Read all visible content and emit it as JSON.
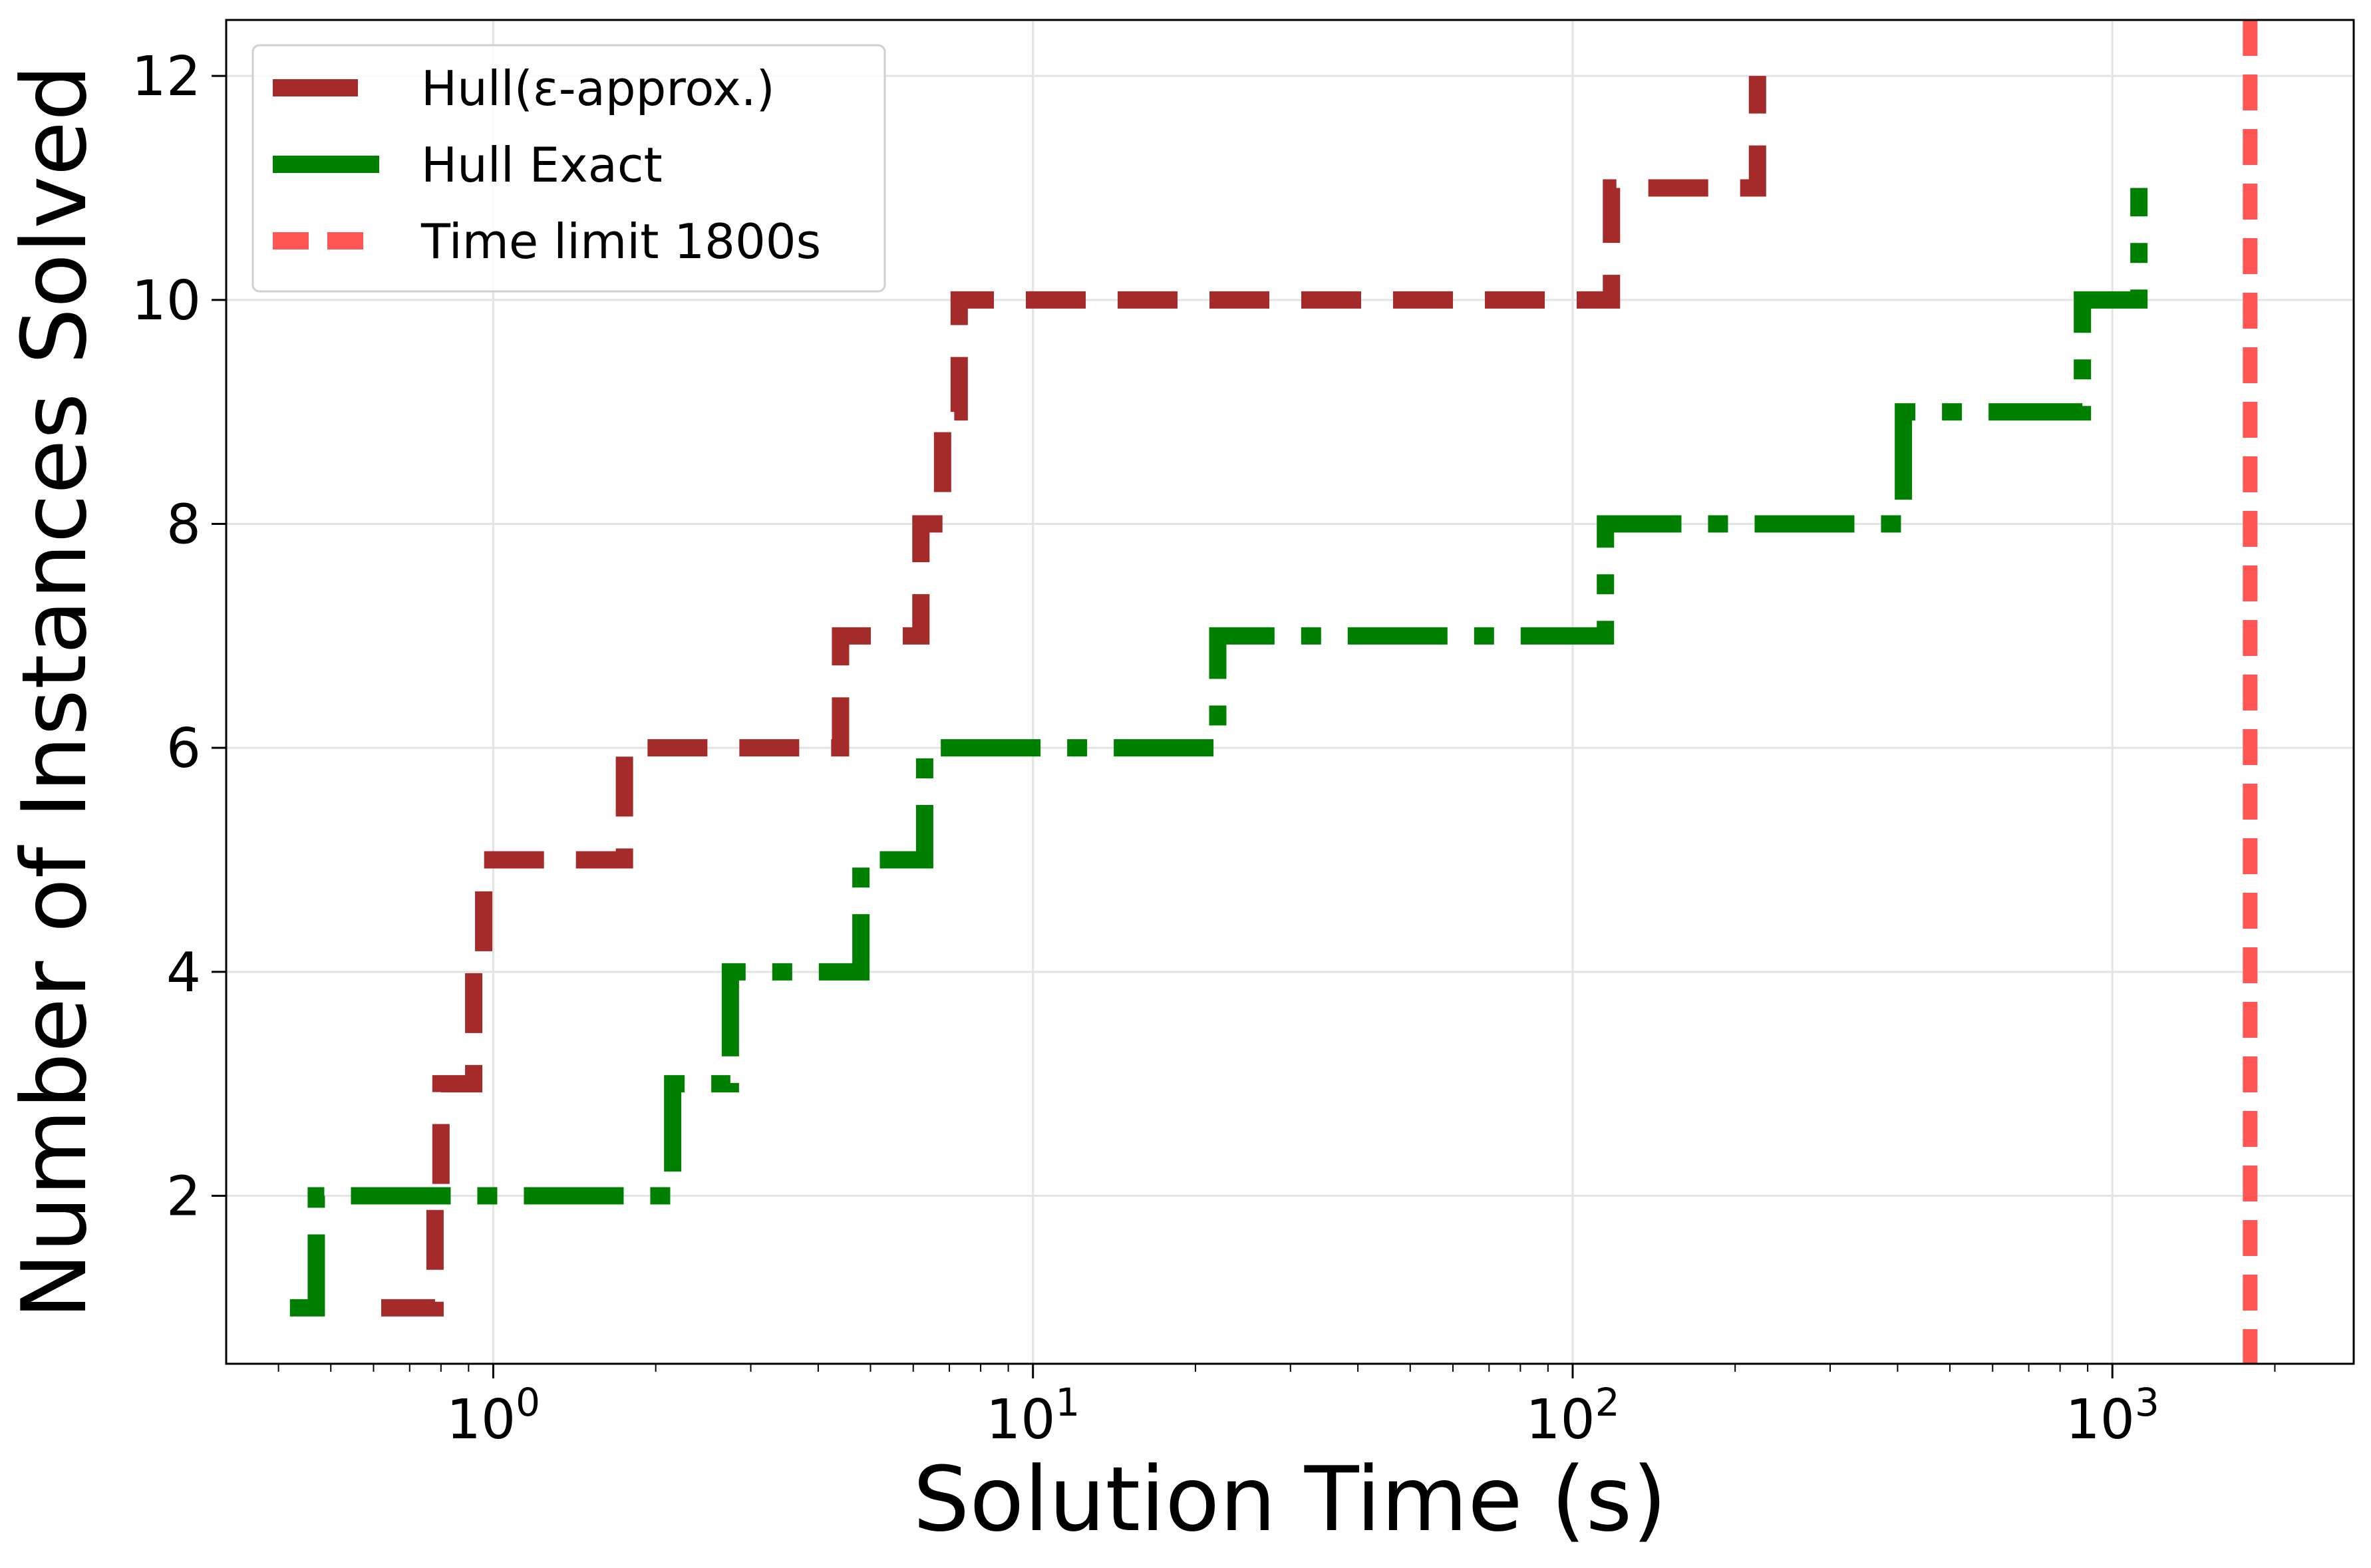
{
  "chart_data": {
    "type": "line",
    "step": "post",
    "xlabel": "Solution Time (s)",
    "ylabel": "Number of Instances Solved",
    "xscale": "log",
    "xlim": [
      0.32,
      2800
    ],
    "ylim": [
      0.5,
      12.5
    ],
    "grid": true,
    "legend_position": "top-left",
    "x_ticks": [
      {
        "value": 1,
        "base": "10",
        "exp": "0"
      },
      {
        "value": 10,
        "base": "10",
        "exp": "1"
      },
      {
        "value": 100,
        "base": "10",
        "exp": "2"
      },
      {
        "value": 1000,
        "base": "10",
        "exp": "3"
      }
    ],
    "y_ticks": [
      2,
      4,
      6,
      8,
      10,
      12
    ],
    "series": [
      {
        "name": "Hull(ε-approx.)",
        "color": "#a52a2a",
        "dash": "long-dash",
        "x": [
          0.62,
          0.78,
          0.8,
          0.92,
          0.96,
          1.75,
          4.4,
          5.1,
          6.2,
          6.8,
          7.3,
          118,
          220
        ],
        "y": [
          1,
          2,
          3,
          4,
          5,
          6,
          7,
          7,
          8,
          9,
          10,
          11,
          12
        ]
      },
      {
        "name": "Hull Exact",
        "color": "#008000",
        "dash": "dash-dot",
        "x": [
          0.42,
          0.47,
          2.15,
          2.75,
          4.8,
          6.3,
          22,
          115,
          410,
          880,
          1120
        ],
        "y": [
          1,
          2,
          3,
          4,
          5,
          6,
          7,
          8,
          9,
          10,
          11
        ]
      },
      {
        "name": "Time limit 1800s",
        "color": "#ff5555",
        "dash": "dashed",
        "vline_x": 1800
      }
    ]
  }
}
